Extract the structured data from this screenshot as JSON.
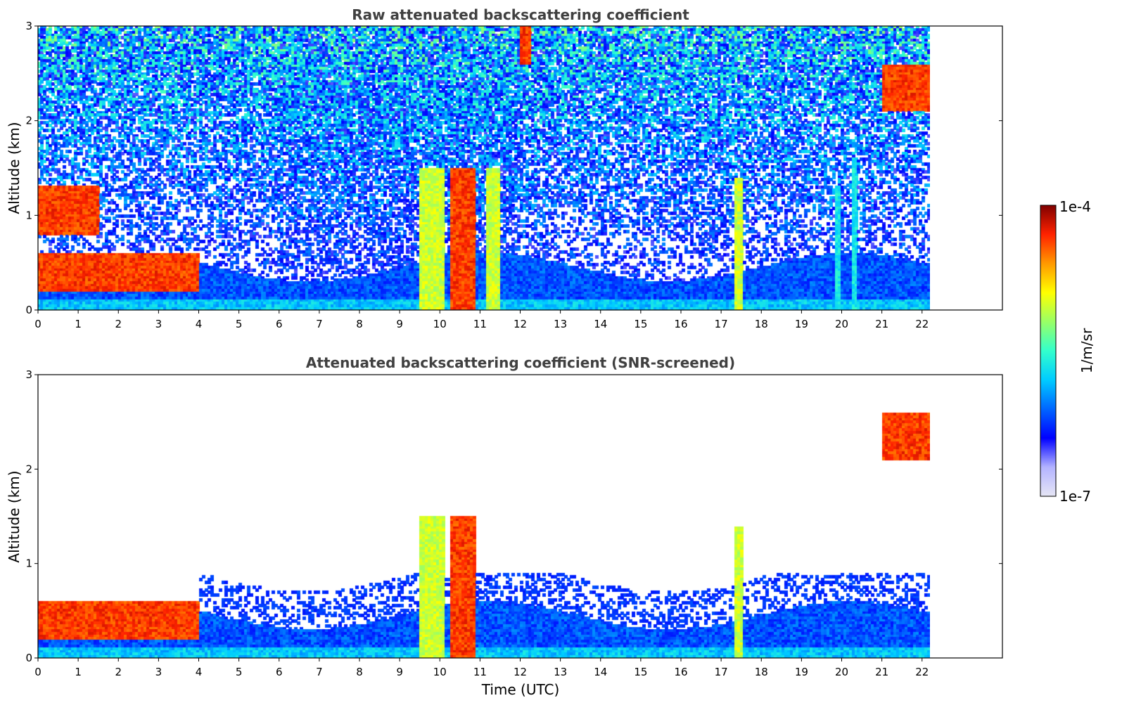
{
  "chart_data": [
    {
      "type": "heatmap",
      "title": "Raw attenuated backscattering coefficient",
      "xlabel": "",
      "ylabel": "Altitude (km)",
      "xlim": [
        0,
        24
      ],
      "ylim": [
        0,
        3
      ],
      "data_end_x": 22.2,
      "xticks": [
        "0",
        "1",
        "2",
        "3",
        "4",
        "5",
        "6",
        "7",
        "8",
        "9",
        "10",
        "11",
        "12",
        "13",
        "14",
        "15",
        "16",
        "17",
        "18",
        "19",
        "20",
        "21",
        "22"
      ],
      "yticks": [
        "0",
        "1",
        "2",
        "3"
      ],
      "noise_floor": "scattered low-SNR noise throughout upper range",
      "features": [
        {
          "kind": "boundary_layer",
          "x": [
            0,
            4
          ],
          "alt": [
            0.2,
            0.6
          ],
          "level": "high"
        },
        {
          "kind": "low_cloud",
          "x": [
            0,
            1.5
          ],
          "alt": [
            0.8,
            1.3
          ],
          "level": "high"
        },
        {
          "kind": "column",
          "x": [
            9.5,
            10.1
          ],
          "alt": [
            0,
            1.5
          ],
          "level": "medium"
        },
        {
          "kind": "column",
          "x": [
            10.3,
            10.9
          ],
          "alt": [
            0,
            1.5
          ],
          "level": "high"
        },
        {
          "kind": "column",
          "x": [
            11.2,
            11.5
          ],
          "alt": [
            0,
            1.5
          ],
          "level": "medium"
        },
        {
          "kind": "column",
          "x": [
            17.35,
            17.55
          ],
          "alt": [
            0,
            1.4
          ],
          "level": "medium"
        },
        {
          "kind": "column",
          "x": [
            19.85,
            19.95
          ],
          "alt": [
            0,
            1.3
          ],
          "level": "low"
        },
        {
          "kind": "column",
          "x": [
            20.25,
            20.4
          ],
          "alt": [
            0,
            1.6
          ],
          "level": "low"
        },
        {
          "kind": "upper_cloud",
          "x": [
            21.0,
            22.2
          ],
          "alt": [
            2.1,
            2.6
          ],
          "level": "high"
        },
        {
          "kind": "upper_cloud",
          "x": [
            12.0,
            12.3
          ],
          "alt": [
            2.6,
            3.0
          ],
          "level": "high"
        }
      ]
    },
    {
      "type": "heatmap",
      "title": "Attenuated backscattering coefficient (SNR-screened)",
      "xlabel": "Time (UTC)",
      "ylabel": "Altitude (km)",
      "xlim": [
        0,
        24
      ],
      "ylim": [
        0,
        3
      ],
      "data_end_x": 22.2,
      "xticks": [
        "0",
        "1",
        "2",
        "3",
        "4",
        "5",
        "6",
        "7",
        "8",
        "9",
        "10",
        "11",
        "12",
        "13",
        "14",
        "15",
        "16",
        "17",
        "18",
        "19",
        "20",
        "21",
        "22"
      ],
      "yticks": [
        "0",
        "1",
        "2",
        "3"
      ],
      "features": [
        {
          "kind": "boundary_layer",
          "x": [
            0,
            4
          ],
          "alt": [
            0.2,
            0.6
          ],
          "level": "high"
        },
        {
          "kind": "column",
          "x": [
            9.5,
            10.1
          ],
          "alt": [
            0,
            1.5
          ],
          "level": "medium"
        },
        {
          "kind": "column",
          "x": [
            10.3,
            10.9
          ],
          "alt": [
            0,
            1.5
          ],
          "level": "high"
        },
        {
          "kind": "column",
          "x": [
            17.35,
            17.55
          ],
          "alt": [
            0,
            1.4
          ],
          "level": "medium"
        },
        {
          "kind": "upper_cloud",
          "x": [
            21.0,
            22.2
          ],
          "alt": [
            2.1,
            2.6
          ],
          "level": "high"
        }
      ]
    }
  ],
  "colorbar": {
    "max_label": "1e-4",
    "min_label": "1e-7",
    "unit_label": "1/m/sr",
    "colormap": "jet",
    "stops": [
      "#e6e6f5",
      "#b3b3ff",
      "#0000ff",
      "#0066ff",
      "#00ccff",
      "#33ffcc",
      "#99ff66",
      "#ffff00",
      "#ff9900",
      "#ff2200",
      "#7f0000"
    ]
  }
}
